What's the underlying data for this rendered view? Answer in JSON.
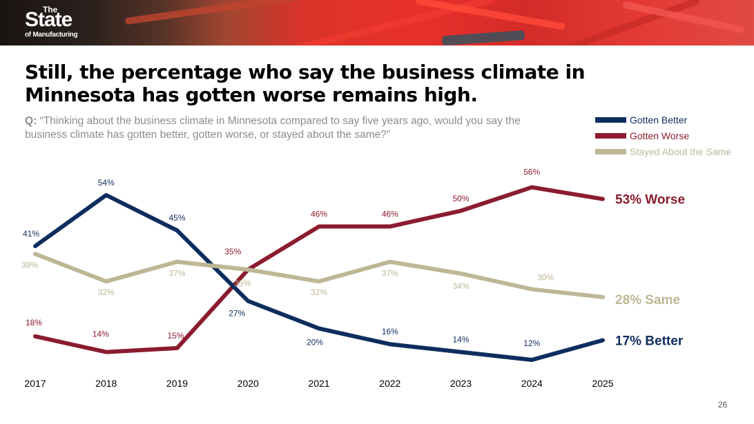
{
  "header": {
    "logo_the": "The",
    "logo_state": "State",
    "logo_sub": "of Manufacturing",
    "logo_reg": "®"
  },
  "title": "Still, the percentage who say the business climate in Minnesota has gotten worse remains high.",
  "question_prefix": "Q:",
  "question_text": "“Thinking about the business climate in Minnesota compared to say five years ago, would you say the business climate has gotten better, gotten worse, or stayed about the same?”",
  "page_number": "26",
  "colors": {
    "better": "#0d2d5e",
    "worse": "#8b1c2f",
    "same": "#bdb796"
  },
  "chart_data": {
    "type": "line",
    "title": "Still, the percentage who say the business climate in Minnesota has gotten worse remains high.",
    "xlabel": "",
    "ylabel": "",
    "grid": false,
    "legend_position": "top-right",
    "ylim": [
      0,
      60
    ],
    "x": [
      "2017",
      "2018",
      "2019",
      "2020",
      "2021",
      "2022",
      "2023",
      "2024",
      "2025"
    ],
    "series": [
      {
        "name": "Gotten Better",
        "key": "better",
        "values": [
          41,
          54,
          45,
          27,
          20,
          16,
          14,
          12,
          17
        ],
        "labels": [
          "41%",
          "54%",
          "45%",
          "27%",
          "20%",
          "16%",
          "14%",
          "12%",
          ""
        ],
        "end_label": "17% Better"
      },
      {
        "name": "Gotten Worse",
        "key": "worse",
        "values": [
          18,
          14,
          15,
          35,
          46,
          46,
          50,
          56,
          53
        ],
        "labels": [
          "18%",
          "14%",
          "15%",
          "35%",
          "46%",
          "46%",
          "50%",
          "56%",
          ""
        ],
        "end_label": "53% Worse"
      },
      {
        "name": "Stayed About the Same",
        "key": "same",
        "values": [
          39,
          32,
          37,
          35,
          32,
          37,
          34,
          30,
          28
        ],
        "labels": [
          "39%",
          "32%",
          "37%",
          "35%",
          "32%",
          "37%",
          "34%",
          "30%",
          ""
        ],
        "end_label": "28% Same"
      }
    ]
  }
}
